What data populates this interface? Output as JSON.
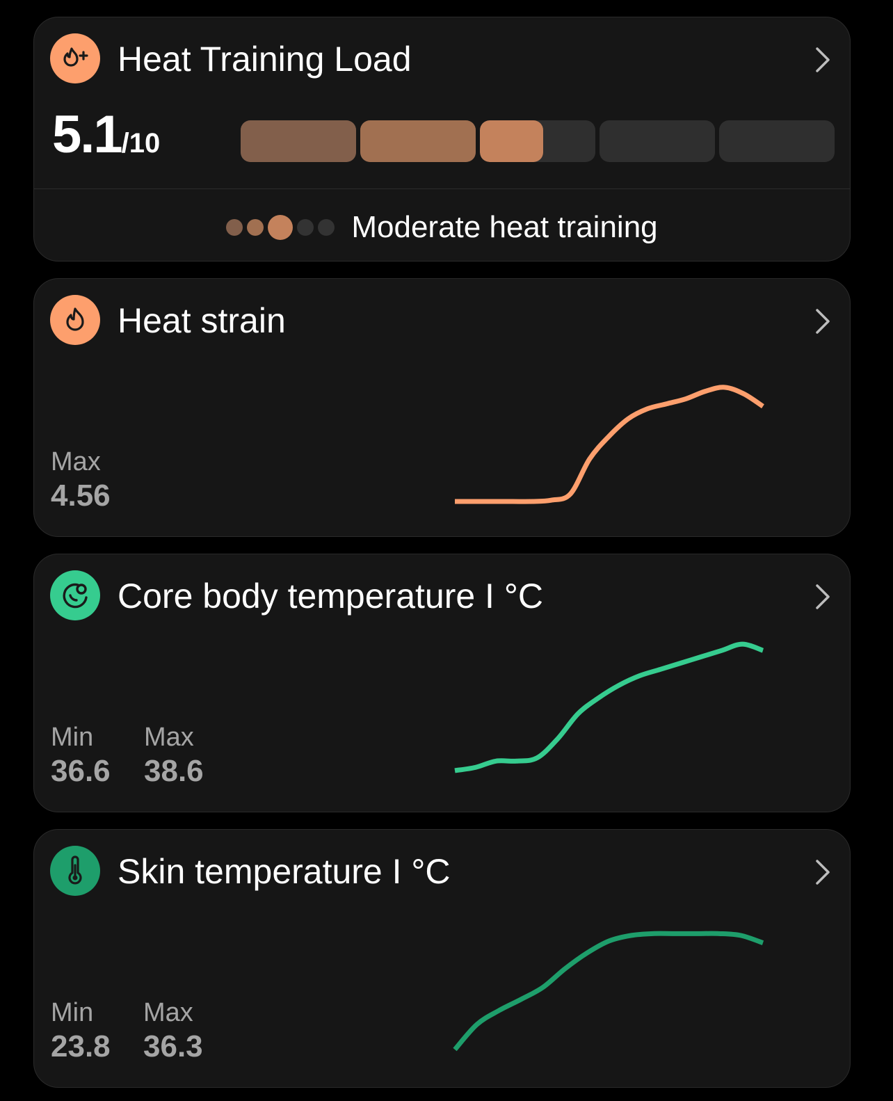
{
  "heat_load": {
    "title": "Heat Training Load",
    "value": "5.1",
    "denominator": "/10",
    "level_fraction": 0.51,
    "segment_colors": [
      "#825f4b",
      "#a17051",
      "#c4825c",
      "#2f2f2f",
      "#2f2f2f"
    ],
    "status": "Moderate heat training",
    "dot_colors": [
      "#825f4b",
      "#a17051",
      "#c4825c",
      "#333333",
      "#333333"
    ],
    "accent": "#fd9f6d",
    "icon": "flame-plus-icon"
  },
  "heat_strain": {
    "title": "Heat strain",
    "icon": "flame-icon",
    "accent": "#fd9f6d",
    "max_label": "Max",
    "max_value": "4.56"
  },
  "core_temp": {
    "title": "Core body temperature I °C",
    "icon": "core-temperature-icon",
    "accent": "#36cc8f",
    "min_label": "Min",
    "min_value": "36.6",
    "max_label": "Max",
    "max_value": "38.6"
  },
  "skin_temp": {
    "title": "Skin temperature I °C",
    "icon": "thermometer-icon",
    "accent": "#1e9e6b",
    "min_label": "Min",
    "min_value": "23.8",
    "max_label": "Max",
    "max_value": "36.3"
  },
  "chart_data": [
    {
      "type": "line",
      "series": [
        {
          "values": [
            0,
            0,
            0,
            0,
            0,
            0.05,
            0.3,
            1.7,
            2.6,
            3.3,
            3.7,
            3.9,
            4.1,
            4.4,
            4.56,
            4.3,
            3.8
          ]
        }
      ]
    },
    {
      "type": "line",
      "series": [
        {
          "values": [
            36.6,
            36.65,
            36.75,
            36.75,
            36.8,
            37.1,
            37.5,
            37.75,
            37.95,
            38.1,
            38.2,
            38.3,
            38.4,
            38.5,
            38.6,
            38.5
          ]
        }
      ]
    },
    {
      "type": "line",
      "series": [
        {
          "values": [
            23.8,
            26.5,
            28,
            29.2,
            30.5,
            32.5,
            34.2,
            35.5,
            36.1,
            36.3,
            36.3,
            36.3,
            36.3,
            36.1,
            35.3
          ]
        }
      ]
    }
  ]
}
